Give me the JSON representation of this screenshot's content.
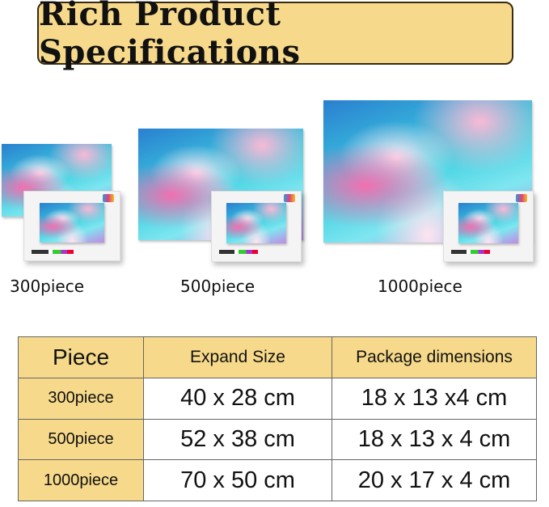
{
  "title": "Rich Product Specifications",
  "products": [
    {
      "label": "300piece"
    },
    {
      "label": "500piece"
    },
    {
      "label": "1000piece"
    }
  ],
  "table": {
    "headers": [
      "Piece",
      "Expand Size",
      "Package dimensions"
    ],
    "rows": [
      [
        "300piece",
        "40 x 28 cm",
        "18 x 13 x4 cm"
      ],
      [
        "500piece",
        "52 x 38 cm",
        "18 x 13 x 4 cm"
      ],
      [
        "1000piece",
        "70 x 50 cm",
        "20 x 17 x 4 cm"
      ]
    ]
  },
  "colors": {
    "accent": "#f6d98a",
    "border": "#3a2a10"
  }
}
